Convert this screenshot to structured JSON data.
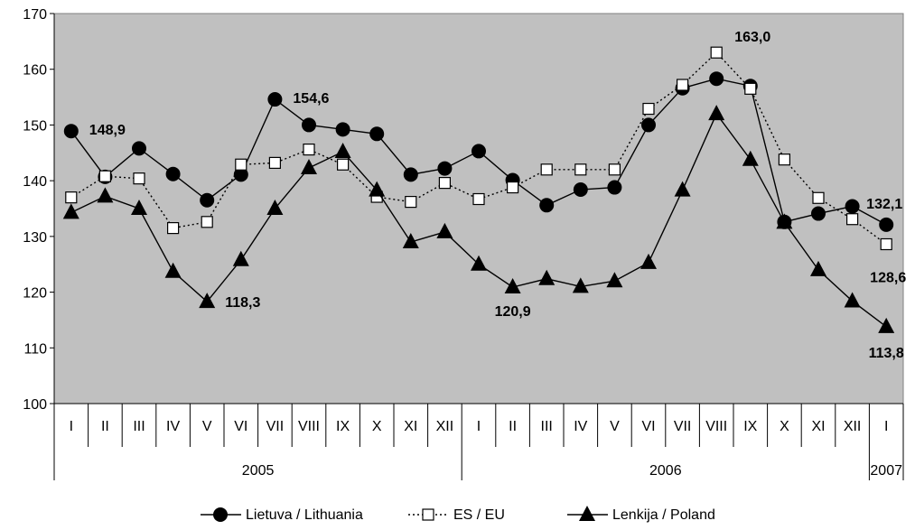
{
  "chart_data": {
    "type": "line",
    "title": "",
    "xlabel": "",
    "ylabel": "",
    "ylim": [
      100,
      170
    ],
    "yticks": [
      100,
      110,
      120,
      130,
      140,
      150,
      160,
      170
    ],
    "grid": false,
    "plot_background": "#c0c0c0",
    "legend_position": "bottom",
    "categories": [
      "I",
      "II",
      "III",
      "IV",
      "V",
      "VI",
      "VII",
      "VIII",
      "IX",
      "X",
      "XI",
      "XII",
      "I",
      "II",
      "III",
      "IV",
      "V",
      "VI",
      "VII",
      "VIII",
      "IX",
      "X",
      "XI",
      "XII",
      "I"
    ],
    "year_groups": [
      {
        "label": "2005",
        "start": 0,
        "end": 12
      },
      {
        "label": "2006",
        "start": 12,
        "end": 24
      },
      {
        "label": "2007",
        "start": 24,
        "end": 25
      }
    ],
    "series": [
      {
        "name": "Lietuva / Lithuania",
        "marker": "circle",
        "line": "solid",
        "values": [
          148.9,
          140.7,
          145.8,
          141.2,
          136.5,
          141.1,
          154.6,
          150.0,
          149.2,
          148.4,
          141.1,
          142.2,
          145.3,
          140.1,
          135.6,
          138.4,
          138.8,
          150.0,
          156.6,
          158.3,
          157.0,
          132.6,
          134.1,
          135.4,
          132.1
        ]
      },
      {
        "name": "ES / EU",
        "marker": "square-open",
        "line": "dotted",
        "values": [
          137.0,
          140.8,
          140.4,
          131.5,
          132.6,
          142.9,
          143.2,
          145.6,
          142.9,
          137.1,
          136.2,
          139.6,
          136.7,
          138.8,
          142.0,
          142.0,
          142.0,
          152.9,
          157.2,
          163.0,
          156.5,
          143.8,
          136.9,
          133.1,
          128.6
        ]
      },
      {
        "name": "Lenkija / Poland",
        "marker": "triangle",
        "line": "solid",
        "values": [
          134.3,
          137.2,
          135.0,
          123.7,
          118.3,
          125.8,
          135.0,
          142.3,
          145.2,
          138.3,
          129.0,
          130.8,
          125.0,
          120.9,
          122.4,
          121.0,
          122.0,
          125.3,
          138.3,
          152.0,
          143.8,
          132.5,
          124.0,
          118.4,
          113.8
        ]
      }
    ],
    "annotations": [
      {
        "text": "148,9",
        "series": 0,
        "index": 0
      },
      {
        "text": "154,6",
        "series": 0,
        "index": 6
      },
      {
        "text": "118,3",
        "series": 2,
        "index": 4
      },
      {
        "text": "120,9",
        "series": 2,
        "index": 13
      },
      {
        "text": "163,0",
        "series": 1,
        "index": 19
      },
      {
        "text": "132,1",
        "series": 0,
        "index": 24
      },
      {
        "text": "128,6",
        "series": 1,
        "index": 24
      },
      {
        "text": "113,8",
        "series": 2,
        "index": 24
      }
    ]
  }
}
